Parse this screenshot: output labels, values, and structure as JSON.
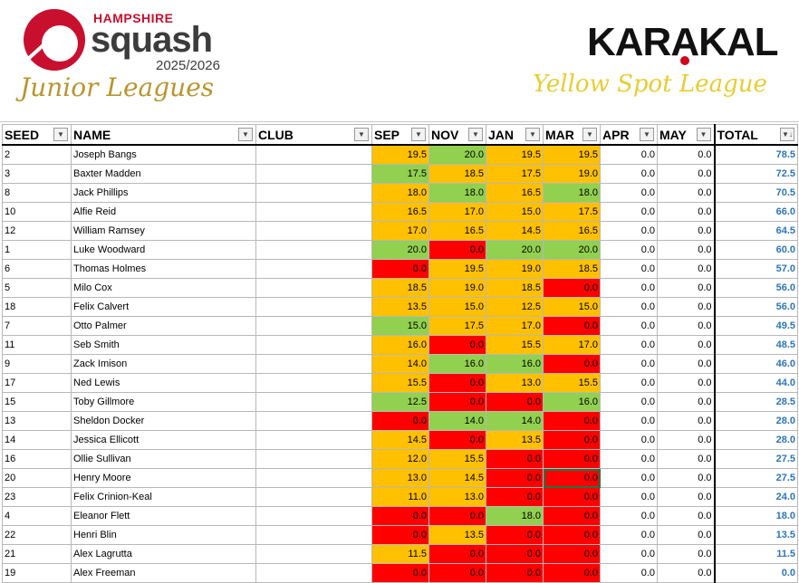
{
  "header": {
    "brand_top": "HAMPSHIRE",
    "brand_main": "squash",
    "season": "2025/2026",
    "subtitle": "Junior Leagues",
    "sponsor": "KARAKAL",
    "league": "Yellow Spot League"
  },
  "colors": {
    "green": "#92d050",
    "orange": "#ffc000",
    "red": "#ff0000",
    "total_blue": "#2e75b6"
  },
  "columns": [
    "SEED",
    "NAME",
    "CLUB",
    "SEP",
    "NOV",
    "JAN",
    "MAR",
    "APR",
    "MAY",
    "TOTAL"
  ],
  "rows": [
    {
      "seed": "2",
      "name": "Joseph Bangs",
      "club": "",
      "scores": [
        "19.5",
        "20.0",
        "19.5",
        "19.5",
        "0.0",
        "0.0"
      ],
      "colors": [
        "o",
        "g",
        "o",
        "o",
        "",
        ""
      ],
      "total": "78.5"
    },
    {
      "seed": "3",
      "name": "Baxter Madden",
      "club": "",
      "scores": [
        "17.5",
        "18.5",
        "17.5",
        "19.0",
        "0.0",
        "0.0"
      ],
      "colors": [
        "g",
        "o",
        "o",
        "o",
        "",
        ""
      ],
      "total": "72.5"
    },
    {
      "seed": "8",
      "name": "Jack Phillips",
      "club": "",
      "scores": [
        "18.0",
        "18.0",
        "16.5",
        "18.0",
        "0.0",
        "0.0"
      ],
      "colors": [
        "o",
        "g",
        "o",
        "g",
        "",
        ""
      ],
      "total": "70.5"
    },
    {
      "seed": "10",
      "name": "Alfie Reid",
      "club": "",
      "scores": [
        "16.5",
        "17.0",
        "15.0",
        "17.5",
        "0.0",
        "0.0"
      ],
      "colors": [
        "o",
        "o",
        "o",
        "o",
        "",
        ""
      ],
      "total": "66.0"
    },
    {
      "seed": "12",
      "name": "William Ramsey",
      "club": "",
      "scores": [
        "17.0",
        "16.5",
        "14.5",
        "16.5",
        "0.0",
        "0.0"
      ],
      "colors": [
        "o",
        "o",
        "o",
        "o",
        "",
        ""
      ],
      "total": "64.5"
    },
    {
      "seed": "1",
      "name": "Luke Woodward",
      "club": "",
      "scores": [
        "20.0",
        "0.0",
        "20.0",
        "20.0",
        "0.0",
        "0.0"
      ],
      "colors": [
        "g",
        "r",
        "g",
        "g",
        "",
        ""
      ],
      "total": "60.0"
    },
    {
      "seed": "6",
      "name": "Thomas Holmes",
      "club": "",
      "scores": [
        "0.0",
        "19.5",
        "19.0",
        "18.5",
        "0.0",
        "0.0"
      ],
      "colors": [
        "r",
        "o",
        "o",
        "o",
        "",
        ""
      ],
      "total": "57.0"
    },
    {
      "seed": "5",
      "name": "Milo Cox",
      "club": "",
      "scores": [
        "18.5",
        "19.0",
        "18.5",
        "0.0",
        "0.0",
        "0.0"
      ],
      "colors": [
        "o",
        "o",
        "o",
        "r",
        "",
        ""
      ],
      "total": "56.0"
    },
    {
      "seed": "18",
      "name": "Felix Calvert",
      "club": "",
      "scores": [
        "13.5",
        "15.0",
        "12.5",
        "15.0",
        "0.0",
        "0.0"
      ],
      "colors": [
        "o",
        "o",
        "o",
        "o",
        "",
        ""
      ],
      "total": "56.0"
    },
    {
      "seed": "7",
      "name": "Otto Palmer",
      "club": "",
      "scores": [
        "15.0",
        "17.5",
        "17.0",
        "0.0",
        "0.0",
        "0.0"
      ],
      "colors": [
        "g",
        "o",
        "o",
        "r",
        "",
        ""
      ],
      "total": "49.5"
    },
    {
      "seed": "11",
      "name": "Seb Smith",
      "club": "",
      "scores": [
        "16.0",
        "0.0",
        "15.5",
        "17.0",
        "0.0",
        "0.0"
      ],
      "colors": [
        "o",
        "r",
        "o",
        "o",
        "",
        ""
      ],
      "total": "48.5"
    },
    {
      "seed": "9",
      "name": "Zack Imison",
      "club": "",
      "scores": [
        "14.0",
        "16.0",
        "16.0",
        "0.0",
        "0.0",
        "0.0"
      ],
      "colors": [
        "o",
        "g",
        "g",
        "r",
        "",
        ""
      ],
      "total": "46.0"
    },
    {
      "seed": "17",
      "name": "Ned Lewis",
      "club": "",
      "scores": [
        "15.5",
        "0.0",
        "13.0",
        "15.5",
        "0.0",
        "0.0"
      ],
      "colors": [
        "o",
        "r",
        "o",
        "o",
        "",
        ""
      ],
      "total": "44.0"
    },
    {
      "seed": "15",
      "name": "Toby Gillmore",
      "club": "",
      "scores": [
        "12.5",
        "0.0",
        "0.0",
        "16.0",
        "0.0",
        "0.0"
      ],
      "colors": [
        "g",
        "r",
        "r",
        "g",
        "",
        ""
      ],
      "total": "28.5"
    },
    {
      "seed": "13",
      "name": "Sheldon Docker",
      "club": "",
      "scores": [
        "0.0",
        "14.0",
        "14.0",
        "0.0",
        "0.0",
        "0.0"
      ],
      "colors": [
        "r",
        "g",
        "g",
        "r",
        "",
        ""
      ],
      "total": "28.0"
    },
    {
      "seed": "14",
      "name": "Jessica Ellicott",
      "club": "",
      "scores": [
        "14.5",
        "0.0",
        "13.5",
        "0.0",
        "0.0",
        "0.0"
      ],
      "colors": [
        "o",
        "r",
        "o",
        "r",
        "",
        ""
      ],
      "total": "28.0"
    },
    {
      "seed": "16",
      "name": "Ollie Sullivan",
      "club": "",
      "scores": [
        "12.0",
        "15.5",
        "0.0",
        "0.0",
        "0.0",
        "0.0"
      ],
      "colors": [
        "o",
        "o",
        "r",
        "r",
        "",
        ""
      ],
      "total": "27.5"
    },
    {
      "seed": "20",
      "name": "Henry Moore",
      "club": "",
      "scores": [
        "13.0",
        "14.5",
        "0.0",
        "0.0",
        "0.0",
        "0.0"
      ],
      "colors": [
        "o",
        "o",
        "r",
        "r",
        "",
        ""
      ],
      "total": "27.5"
    },
    {
      "seed": "23",
      "name": "Felix Crinion-Keal",
      "club": "",
      "scores": [
        "11.0",
        "13.0",
        "0.0",
        "0.0",
        "0.0",
        "0.0"
      ],
      "colors": [
        "o",
        "o",
        "r",
        "r",
        "",
        ""
      ],
      "total": "24.0"
    },
    {
      "seed": "4",
      "name": "Eleanor Flett",
      "club": "",
      "scores": [
        "0.0",
        "0.0",
        "18.0",
        "0.0",
        "0.0",
        "0.0"
      ],
      "colors": [
        "r",
        "r",
        "g",
        "r",
        "",
        ""
      ],
      "total": "18.0"
    },
    {
      "seed": "22",
      "name": "Henri Blin",
      "club": "",
      "scores": [
        "0.0",
        "13.5",
        "0.0",
        "0.0",
        "0.0",
        "0.0"
      ],
      "colors": [
        "r",
        "o",
        "r",
        "r",
        "",
        ""
      ],
      "total": "13.5"
    },
    {
      "seed": "21",
      "name": "Alex Lagrutta",
      "club": "",
      "scores": [
        "11.5",
        "0.0",
        "0.0",
        "0.0",
        "0.0",
        "0.0"
      ],
      "colors": [
        "o",
        "r",
        "r",
        "r",
        "",
        ""
      ],
      "total": "11.5"
    },
    {
      "seed": "19",
      "name": "Alex Freeman",
      "club": "",
      "scores": [
        "0.0",
        "0.0",
        "0.0",
        "0.0",
        "0.0",
        "0.0"
      ],
      "colors": [
        "r",
        "r",
        "r",
        "r",
        "",
        ""
      ],
      "total": "0.0"
    }
  ]
}
